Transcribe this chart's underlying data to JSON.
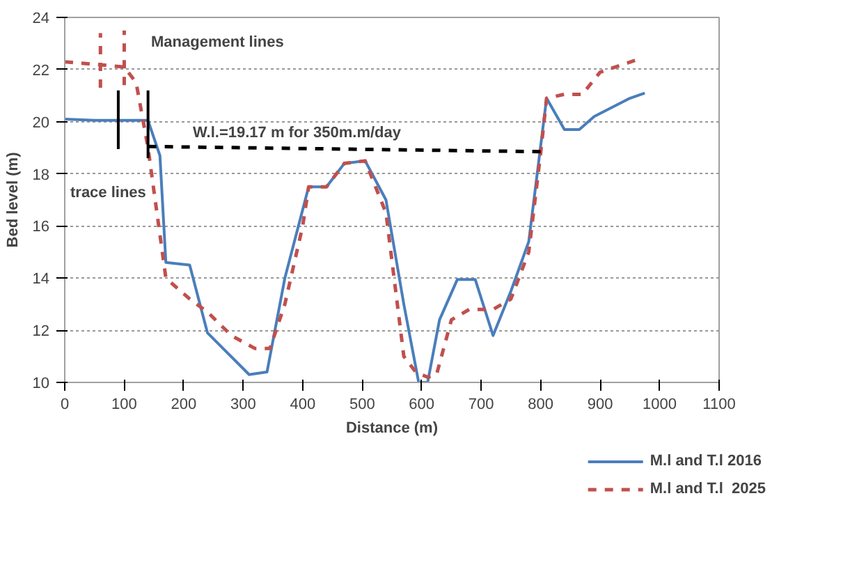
{
  "chart_data": {
    "type": "line",
    "xlabel": "Distance (m)",
    "ylabel": "Bed level (m)",
    "xlim": [
      0,
      1100
    ],
    "xticks": [
      0,
      100,
      200,
      300,
      400,
      500,
      600,
      700,
      800,
      900,
      1000,
      1100
    ],
    "ylim": [
      10,
      24
    ],
    "yticks": [
      10,
      12,
      14,
      16,
      18,
      20,
      22,
      24
    ],
    "grid": "y",
    "legend": "bottom right",
    "marker": "none",
    "series": [
      {
        "name": "M.l and T.l 2016",
        "color": "#4a7ebb",
        "line_style": "solid",
        "x": [
          0,
          50,
          100,
          140,
          160,
          170,
          210,
          240,
          310,
          340,
          370,
          410,
          440,
          470,
          505,
          540,
          570,
          595,
          610,
          630,
          660,
          690,
          720,
          750,
          780,
          810,
          840,
          865,
          890,
          950,
          975
        ],
        "values": [
          20.1,
          20.05,
          20.05,
          20.05,
          18.7,
          14.6,
          14.5,
          11.9,
          10.3,
          10.4,
          14,
          17.5,
          17.5,
          18.4,
          18.5,
          17,
          13,
          10,
          10,
          12.4,
          13.95,
          13.95,
          11.8,
          13.5,
          15.4,
          20.9,
          19.7,
          19.7,
          20.2,
          20.9,
          21.1
        ]
      },
      {
        "name": "M.l and T.l  2025",
        "color": "#c0504d",
        "line_style": "dashed",
        "x": [
          0,
          50,
          100,
          120,
          140,
          170,
          210,
          240,
          280,
          320,
          345,
          370,
          400,
          410,
          440,
          470,
          505,
          540,
          570,
          590,
          610,
          625,
          650,
          680,
          720,
          750,
          780,
          800,
          810,
          840,
          870,
          900,
          965
        ],
        "values": [
          22.3,
          22.2,
          22.1,
          21.5,
          19,
          14,
          13.2,
          12.7,
          11.8,
          11.3,
          11.3,
          13,
          16,
          17.5,
          17.5,
          18.4,
          18.5,
          16.5,
          11,
          10.4,
          10.2,
          10.3,
          12.4,
          12.8,
          12.8,
          13.2,
          15,
          18.8,
          20.9,
          21.05,
          21.05,
          21.9,
          22.4
        ]
      },
      {
        "color": "#000000",
        "line_style": "dashed",
        "x": [
          140,
          800
        ],
        "values": [
          19.05,
          18.85
        ]
      },
      {
        "color": "#000000",
        "line_style": "solid",
        "x": [
          90,
          90
        ],
        "values": [
          18.95,
          21.2
        ]
      },
      {
        "color": "#000000",
        "line_style": "solid",
        "x": [
          140,
          140
        ],
        "values": [
          18.6,
          21.2
        ]
      },
      {
        "color": "#c0504d",
        "line_style": "dashed",
        "x": [
          60,
          60
        ],
        "values": [
          21.3,
          23.4
        ]
      },
      {
        "color": "#c0504d",
        "line_style": "dashed",
        "x": [
          100,
          100
        ],
        "values": [
          21.4,
          23.5
        ]
      }
    ],
    "annotations": [
      "Management lines",
      "W.l.=19.17 m    for 350m.m/day",
      "trace lines"
    ]
  }
}
